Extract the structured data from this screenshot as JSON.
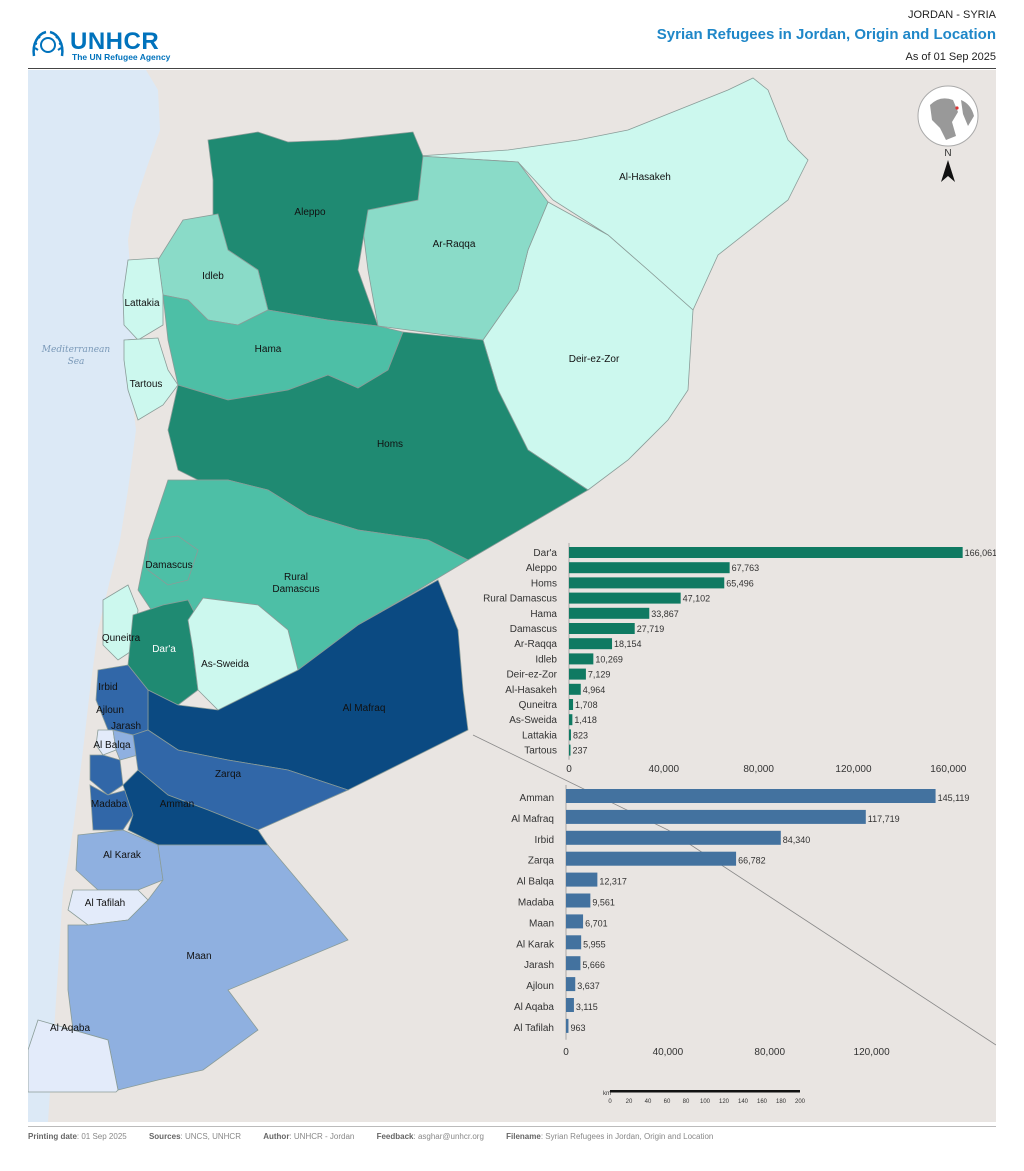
{
  "header": {
    "logo_name": "UNHCR",
    "logo_sub": "The UN Refugee Agency",
    "country": "JORDAN - SYRIA",
    "title": "Syrian Refugees in Jordan, Origin and Location",
    "date": "As of 01 Sep 2025"
  },
  "map": {
    "sea_label_1": "Mediterranean",
    "sea_label_2": "Sea",
    "north_label": "N",
    "scale_unit": "km",
    "scale_ticks": [
      "0",
      "20",
      "40",
      "60",
      "80",
      "100",
      "120",
      "140",
      "160",
      "180",
      "200"
    ],
    "syria_regions": [
      "Aleppo",
      "Ar-Raqqa",
      "Al-Hasakeh",
      "Idleb",
      "Lattakia",
      "Hama",
      "Tartous",
      "Deir-ez-Zor",
      "Homs",
      "Damascus",
      "Rural Damascus",
      "Quneitra",
      "Dar'a",
      "As-Sweida"
    ],
    "jordan_regions": [
      "Irbid",
      "Ajloun",
      "Jarash",
      "Al Balqa",
      "Al Mafraq",
      "Zarqa",
      "Madaba",
      "Amman",
      "Al Karak",
      "Al Tafilah",
      "Maan",
      "Al Aqaba"
    ],
    "colors": {
      "syria_dark": "#1f8a72",
      "syria_mid": "#4dbfa6",
      "syria_light": "#8adbc8",
      "syria_pale": "#ccf8ee",
      "jordan_dark": "#0b4a82",
      "jordan_mid": "#3167a8",
      "jordan_light": "#8fb0e0",
      "jordan_pale": "#e3ebfa"
    }
  },
  "chart_data": [
    {
      "type": "bar",
      "orientation": "horizontal",
      "categories": [
        "Dar'a",
        "Aleppo",
        "Homs",
        "Rural Damascus",
        "Hama",
        "Damascus",
        "Ar-Raqqa",
        "Idleb",
        "Deir-ez-Zor",
        "Al-Hasakeh",
        "Quneitra",
        "As-Sweida",
        "Lattakia",
        "Tartous"
      ],
      "values": [
        166061,
        67763,
        65496,
        47102,
        33867,
        27719,
        18154,
        10269,
        7129,
        4964,
        1708,
        1418,
        823,
        237
      ],
      "value_labels": [
        "166,061",
        "67,763",
        "65,496",
        "47,102",
        "33,867",
        "27,719",
        "18,154",
        "10,269",
        "7,129",
        "4,964",
        "1,708",
        "1,418",
        "823",
        "237"
      ],
      "x_ticks": [
        "0",
        "40,000",
        "80,000",
        "120,000",
        "160,000"
      ],
      "xlim": [
        0,
        170000
      ],
      "color": "#0f7a62"
    },
    {
      "type": "bar",
      "orientation": "horizontal",
      "categories": [
        "Amman",
        "Al Mafraq",
        "Irbid",
        "Zarqa",
        "Al Balqa",
        "Madaba",
        "Maan",
        "Al Karak",
        "Jarash",
        "Ajloun",
        "Al Aqaba",
        "Al Tafilah"
      ],
      "values": [
        145119,
        117719,
        84340,
        66782,
        12317,
        9561,
        6701,
        5955,
        5666,
        3637,
        3115,
        963
      ],
      "value_labels": [
        "145,119",
        "117,719",
        "84,340",
        "66,782",
        "12,317",
        "9,561",
        "6,701",
        "5,955",
        "5,666",
        "3,637",
        "3,115",
        "963"
      ],
      "x_ticks": [
        "0",
        "40,000",
        "80,000",
        "120,000"
      ],
      "xlim": [
        0,
        150000
      ],
      "color": "#43729f"
    }
  ],
  "footer": {
    "printing_label": "Printing date",
    "printing_value": "01 Sep 2025",
    "sources_label": "Sources",
    "sources_value": "UNCS, UNHCR",
    "author_label": "Author",
    "author_value": "UNHCR - Jordan",
    "feedback_label": "Feedback",
    "feedback_value": "asghar@unhcr.org",
    "filename_label": "Filename",
    "filename_value": "Syrian Refugees in Jordan, Origin and Location"
  }
}
